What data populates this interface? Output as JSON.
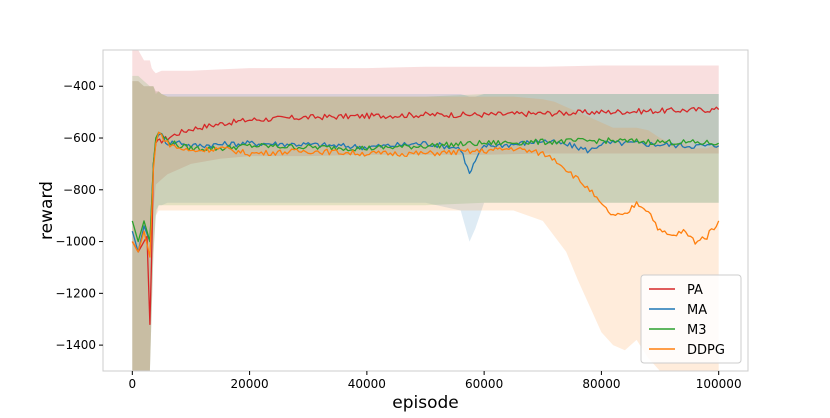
{
  "chart_data": {
    "type": "line",
    "title": "",
    "xlabel": "episode",
    "ylabel": "reward",
    "xlim": [
      -5000,
      105000
    ],
    "ylim": [
      -1500,
      -260
    ],
    "x_ticks": [
      0,
      20000,
      40000,
      60000,
      80000,
      100000
    ],
    "x_tick_labels": [
      "0",
      "20000",
      "40000",
      "60000",
      "80000",
      "100000"
    ],
    "y_ticks": [
      -400,
      -600,
      -800,
      -1000,
      -1200,
      -1400
    ],
    "y_tick_labels": [
      "−400",
      "−600",
      "−800",
      "−1000",
      "−1200",
      "−1400"
    ],
    "grid": false,
    "legend": {
      "position": "bottom-right",
      "entries": [
        "PA",
        "MA",
        "M3",
        "DDPG"
      ]
    },
    "series": [
      {
        "name": "PA",
        "color": "#d62728",
        "x": [
          0,
          1000,
          2000,
          2500,
          3000,
          3300,
          3600,
          4000,
          5000,
          6000,
          8000,
          10000,
          15000,
          20000,
          30000,
          40000,
          50000,
          60000,
          70000,
          80000,
          90000,
          95000,
          100000
        ],
        "mean": [
          -1000,
          -1040,
          -1000,
          -980,
          -1320,
          -1050,
          -700,
          -620,
          -610,
          -600,
          -580,
          -565,
          -545,
          -530,
          -520,
          -515,
          -510,
          -510,
          -505,
          -500,
          -495,
          -492,
          -490
        ],
        "band_upper": [
          -260,
          -260,
          -300,
          -300,
          -300,
          -330,
          -340,
          -350,
          -340,
          -340,
          -340,
          -340,
          -335,
          -330,
          -330,
          -330,
          -325,
          -325,
          -325,
          -320,
          -320,
          -320,
          -320
        ],
        "band_lower": [
          -1500,
          -1500,
          -1500,
          -1500,
          -1500,
          -1200,
          -880,
          -780,
          -760,
          -740,
          -720,
          -700,
          -680,
          -670,
          -670,
          -665,
          -665,
          -665,
          -660,
          -660,
          -660,
          -660,
          -660
        ]
      },
      {
        "name": "MA",
        "color": "#1f77b4",
        "x": [
          0,
          1000,
          2000,
          3000,
          3600,
          4000,
          4500,
          5000,
          6000,
          8000,
          10000,
          15000,
          20000,
          30000,
          40000,
          50000,
          56000,
          57500,
          58500,
          60000,
          65000,
          70000,
          75000,
          78000,
          80000,
          85000,
          90000,
          95000,
          100000
        ],
        "mean": [
          -960,
          -1040,
          -940,
          -1000,
          -700,
          -610,
          -580,
          -590,
          -620,
          -615,
          -630,
          -625,
          -620,
          -625,
          -635,
          -620,
          -640,
          -740,
          -690,
          -630,
          -625,
          -610,
          -630,
          -650,
          -620,
          -620,
          -625,
          -630,
          -630
        ],
        "band_upper": [
          -380,
          -380,
          -400,
          -400,
          -400,
          -420,
          -420,
          -430,
          -430,
          -430,
          -430,
          -430,
          -430,
          -430,
          -430,
          -430,
          -430,
          -440,
          -440,
          -430,
          -430,
          -430,
          -430,
          -430,
          -430,
          -430,
          -430,
          -430,
          -430
        ],
        "band_lower": [
          -1500,
          -1500,
          -1500,
          -1500,
          -1050,
          -900,
          -860,
          -860,
          -850,
          -850,
          -850,
          -850,
          -850,
          -850,
          -850,
          -850,
          -880,
          -1000,
          -950,
          -850,
          -850,
          -850,
          -850,
          -850,
          -850,
          -850,
          -850,
          -850,
          -850
        ]
      },
      {
        "name": "M3",
        "color": "#2ca02c",
        "x": [
          0,
          1000,
          2000,
          3000,
          3600,
          4000,
          4500,
          5000,
          6000,
          8000,
          10000,
          15000,
          20000,
          30000,
          40000,
          50000,
          60000,
          70000,
          80000,
          90000,
          100000
        ],
        "mean": [
          -920,
          -1000,
          -920,
          -1000,
          -700,
          -600,
          -575,
          -590,
          -610,
          -630,
          -640,
          -640,
          -630,
          -635,
          -640,
          -630,
          -620,
          -615,
          -610,
          -615,
          -620
        ],
        "band_upper": [
          -360,
          -360,
          -380,
          -400,
          -400,
          -430,
          -420,
          -430,
          -440,
          -440,
          -440,
          -440,
          -440,
          -440,
          -440,
          -440,
          -430,
          -430,
          -430,
          -430,
          -430
        ],
        "band_lower": [
          -1500,
          -1500,
          -1500,
          -1500,
          -1050,
          -880,
          -860,
          -860,
          -860,
          -860,
          -860,
          -860,
          -860,
          -860,
          -860,
          -860,
          -850,
          -850,
          -850,
          -850,
          -850
        ]
      },
      {
        "name": "DDPG",
        "color": "#ff7f0e",
        "x": [
          0,
          1000,
          2000,
          3000,
          3600,
          4000,
          4500,
          5000,
          6000,
          8000,
          10000,
          15000,
          20000,
          30000,
          40000,
          50000,
          60000,
          65000,
          70000,
          72000,
          74000,
          76000,
          78000,
          80000,
          82000,
          84000,
          86000,
          88000,
          90000,
          92000,
          94000,
          96000,
          98000,
          100000
        ],
        "mean": [
          -1000,
          -1040,
          -960,
          -1060,
          -720,
          -620,
          -580,
          -590,
          -620,
          -640,
          -650,
          -640,
          -660,
          -650,
          -660,
          -660,
          -650,
          -640,
          -660,
          -680,
          -720,
          -760,
          -800,
          -860,
          -900,
          -900,
          -850,
          -880,
          -960,
          -980,
          -960,
          -1000,
          -980,
          -920
        ],
        "band_upper": [
          -380,
          -380,
          -400,
          -400,
          -400,
          -420,
          -420,
          -430,
          -440,
          -440,
          -440,
          -440,
          -440,
          -440,
          -440,
          -440,
          -440,
          -440,
          -450,
          -460,
          -480,
          -500,
          -520,
          -540,
          -560,
          -560,
          -560,
          -570,
          -600,
          -620,
          -620,
          -640,
          -640,
          -620
        ],
        "band_lower": [
          -1500,
          -1500,
          -1500,
          -1500,
          -1050,
          -900,
          -880,
          -880,
          -880,
          -880,
          -880,
          -880,
          -880,
          -880,
          -880,
          -880,
          -880,
          -880,
          -920,
          -980,
          -1040,
          -1150,
          -1250,
          -1350,
          -1400,
          -1420,
          -1380,
          -1450,
          -1500,
          -1500,
          -1500,
          -1500,
          -1500,
          -1500
        ]
      }
    ]
  }
}
